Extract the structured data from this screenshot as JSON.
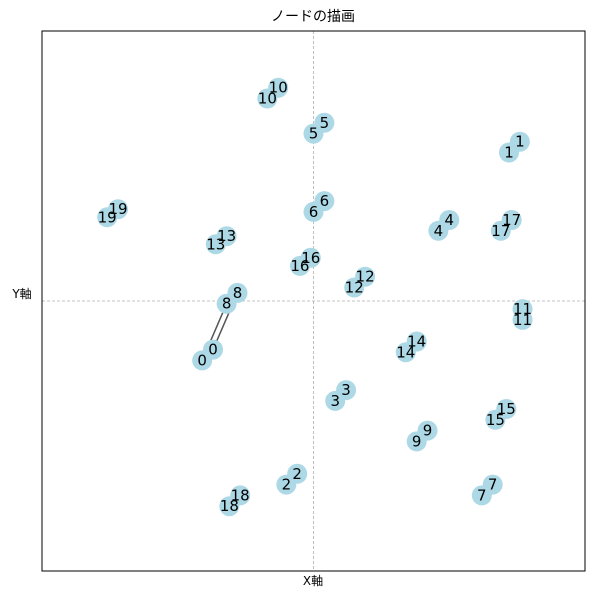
{
  "chart_data": {
    "type": "scatter",
    "title": "ノードの描画",
    "xlabel": "X軸",
    "ylabel": "Y軸",
    "xlim": [
      -1,
      1
    ],
    "ylim": [
      -1,
      1
    ],
    "grid": "center crosshair lines (dashed)",
    "ticks": "none",
    "node_color": "#add8e6",
    "edge_color": "#555555",
    "nodes": [
      {
        "label": "0",
        "x": -0.41,
        "y": -0.22,
        "x2": -0.37,
        "y2": -0.18
      },
      {
        "label": "1",
        "x": 0.72,
        "y": 0.55,
        "x2": 0.76,
        "y2": 0.59
      },
      {
        "label": "2",
        "x": -0.1,
        "y": -0.68,
        "x2": -0.06,
        "y2": -0.64
      },
      {
        "label": "3",
        "x": 0.08,
        "y": -0.37,
        "x2": 0.12,
        "y2": -0.33
      },
      {
        "label": "4",
        "x": 0.46,
        "y": 0.26,
        "x2": 0.5,
        "y2": 0.3
      },
      {
        "label": "5",
        "x": 0.0,
        "y": 0.62,
        "x2": 0.04,
        "y2": 0.66
      },
      {
        "label": "6",
        "x": 0.0,
        "y": 0.33,
        "x2": 0.04,
        "y2": 0.37
      },
      {
        "label": "7",
        "x": 0.62,
        "y": -0.72,
        "x2": 0.66,
        "y2": -0.68
      },
      {
        "label": "8",
        "x": -0.32,
        "y": -0.01,
        "x2": -0.28,
        "y2": 0.03
      },
      {
        "label": "9",
        "x": 0.38,
        "y": -0.52,
        "x2": 0.42,
        "y2": -0.48
      },
      {
        "label": "10",
        "x": -0.17,
        "y": 0.75,
        "x2": -0.13,
        "y2": 0.79
      },
      {
        "label": "11",
        "x": 0.77,
        "y": -0.07,
        "x2": 0.77,
        "y2": -0.03
      },
      {
        "label": "12",
        "x": 0.15,
        "y": 0.05,
        "x2": 0.19,
        "y2": 0.09
      },
      {
        "label": "13",
        "x": -0.36,
        "y": 0.21,
        "x2": -0.32,
        "y2": 0.24
      },
      {
        "label": "14",
        "x": 0.34,
        "y": -0.19,
        "x2": 0.38,
        "y2": -0.15
      },
      {
        "label": "15",
        "x": 0.67,
        "y": -0.44,
        "x2": 0.71,
        "y2": -0.4
      },
      {
        "label": "16",
        "x": -0.05,
        "y": 0.13,
        "x2": -0.01,
        "y2": 0.16
      },
      {
        "label": "17",
        "x": 0.69,
        "y": 0.26,
        "x2": 0.73,
        "y2": 0.3
      },
      {
        "label": "19",
        "x": -0.76,
        "y": 0.31,
        "x2": -0.72,
        "y2": 0.34
      },
      {
        "label": "18",
        "x": -0.31,
        "y": -0.76,
        "x2": -0.27,
        "y2": -0.72
      }
    ],
    "edges": [
      {
        "source": "0",
        "target": "8"
      }
    ]
  }
}
